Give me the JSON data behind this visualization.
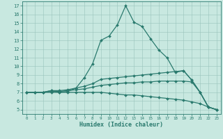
{
  "xlabel": "Humidex (Indice chaleur)",
  "xlim": [
    -0.5,
    23.5
  ],
  "ylim": [
    4.5,
    17.5
  ],
  "yticks": [
    5,
    6,
    7,
    8,
    9,
    10,
    11,
    12,
    13,
    14,
    15,
    16,
    17
  ],
  "xticks": [
    0,
    1,
    2,
    3,
    4,
    5,
    6,
    7,
    8,
    9,
    10,
    11,
    12,
    13,
    14,
    15,
    16,
    17,
    18,
    19,
    20,
    21,
    22,
    23
  ],
  "background_color": "#c8e8e0",
  "grid_color": "#99c4bc",
  "line_color": "#2a7a6e",
  "lines": [
    {
      "x": [
        0,
        1,
        2,
        3,
        4,
        5,
        6,
        7,
        8,
        9,
        10,
        11,
        12,
        13,
        14,
        15,
        16,
        17,
        18,
        19,
        20,
        21,
        22,
        23
      ],
      "y": [
        7.0,
        7.0,
        7.0,
        7.2,
        7.0,
        7.1,
        7.5,
        8.7,
        10.3,
        13.0,
        13.5,
        14.8,
        17.0,
        15.1,
        14.6,
        13.2,
        11.9,
        11.0,
        9.3,
        9.5,
        8.4,
        7.0,
        5.3,
        5.0
      ]
    },
    {
      "x": [
        0,
        1,
        2,
        3,
        4,
        5,
        6,
        7,
        8,
        9,
        10,
        11,
        12,
        13,
        14,
        15,
        16,
        17,
        18,
        19,
        20,
        21,
        22,
        23
      ],
      "y": [
        7.0,
        7.0,
        7.0,
        7.2,
        7.2,
        7.3,
        7.5,
        7.7,
        8.0,
        8.5,
        8.6,
        8.7,
        8.8,
        8.9,
        9.0,
        9.1,
        9.2,
        9.3,
        9.4,
        9.5,
        8.4,
        7.0,
        5.3,
        5.0
      ]
    },
    {
      "x": [
        0,
        1,
        2,
        3,
        4,
        5,
        6,
        7,
        8,
        9,
        10,
        11,
        12,
        13,
        14,
        15,
        16,
        17,
        18,
        19,
        20,
        21,
        22,
        23
      ],
      "y": [
        7.0,
        7.0,
        7.0,
        7.1,
        7.1,
        7.2,
        7.3,
        7.4,
        7.6,
        7.8,
        7.9,
        8.0,
        8.1,
        8.1,
        8.2,
        8.2,
        8.3,
        8.3,
        8.3,
        8.3,
        8.2,
        7.0,
        5.3,
        5.0
      ]
    },
    {
      "x": [
        0,
        1,
        2,
        3,
        4,
        5,
        6,
        7,
        8,
        9,
        10,
        11,
        12,
        13,
        14,
        15,
        16,
        17,
        18,
        19,
        20,
        21,
        22,
        23
      ],
      "y": [
        7.0,
        7.0,
        7.0,
        7.0,
        7.0,
        7.0,
        7.0,
        7.0,
        7.0,
        7.0,
        6.9,
        6.8,
        6.7,
        6.7,
        6.6,
        6.5,
        6.4,
        6.3,
        6.2,
        6.1,
        5.9,
        5.7,
        5.3,
        5.0
      ]
    }
  ]
}
